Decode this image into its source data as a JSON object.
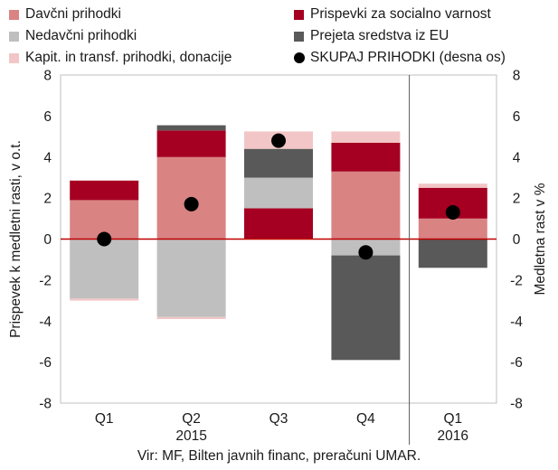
{
  "chart_data": {
    "type": "bar",
    "stacked": true,
    "categories": [
      "Q1",
      "Q2",
      "Q3",
      "Q4",
      "Q1"
    ],
    "year_labels": [
      {
        "label": "2015",
        "under": "Q2"
      },
      {
        "label": "2016",
        "under": "Q1"
      }
    ],
    "series": [
      {
        "name": "Davčni prihodki",
        "color": "#d98383",
        "values": [
          1.9,
          4.0,
          0.0,
          3.3,
          1.0
        ]
      },
      {
        "name": "Prispevki za socialno varnost",
        "color": "#a50021",
        "values": [
          0.95,
          1.3,
          1.5,
          1.4,
          1.5
        ]
      },
      {
        "name": "Nedavčni prihodki",
        "color": "#bfbfbf",
        "values": [
          -2.9,
          -3.8,
          1.5,
          -0.8,
          0.0
        ]
      },
      {
        "name": "Prejeta sredstva iz EU",
        "color": "#595959",
        "values": [
          0.0,
          0.25,
          1.4,
          -5.1,
          -1.4
        ]
      },
      {
        "name": "Kapit. in transf. prihodki, donacije",
        "color": "#f2c6c6",
        "values": [
          -0.1,
          -0.1,
          0.85,
          0.55,
          0.2
        ]
      }
    ],
    "total": {
      "name": "SKUPAJ PRIHODKI (desna os)",
      "values": [
        0.0,
        1.7,
        4.8,
        -0.65,
        1.3
      ]
    },
    "ylabel": "Prispevek k medletni rasti, v o.t.",
    "y2label": "Medletna rast v %",
    "ylim": [
      -8,
      8
    ],
    "y2lim": [
      -8,
      8
    ],
    "yticks": [
      -8,
      -6,
      -4,
      -2,
      0,
      2,
      4,
      6,
      8
    ],
    "legend_position": "top",
    "grid": false
  },
  "source": "Vir: MF, Bilten javnih financ, preračuni UMAR."
}
